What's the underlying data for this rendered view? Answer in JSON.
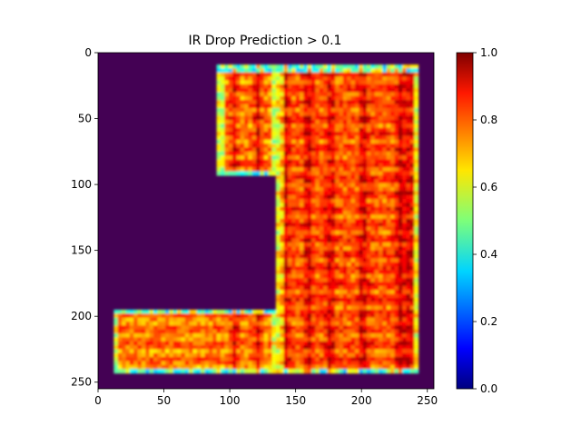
{
  "chart_data": {
    "type": "heatmap",
    "title": "IR Drop Prediction > 0.1",
    "xlabel": "",
    "ylabel": "",
    "xlim": [
      0,
      255
    ],
    "ylim": [
      255,
      0
    ],
    "x_ticks": [
      0,
      50,
      100,
      150,
      200,
      250
    ],
    "y_ticks": [
      0,
      50,
      100,
      150,
      200,
      250
    ],
    "grid": false,
    "colormap": "jet",
    "colorbar": {
      "range": [
        0.0,
        1.0
      ],
      "ticks": [
        0.0,
        0.2,
        0.4,
        0.6,
        0.8,
        1.0
      ],
      "tick_labels": [
        "0.0",
        "0.2",
        "0.4",
        "0.6",
        "0.8",
        "1.0"
      ]
    },
    "background_value": 0.0,
    "background_color": "#440154",
    "regions": [
      {
        "name": "upper-left-block",
        "x": [
          91,
          136
        ],
        "y": [
          10,
          94
        ],
        "value_range": [
          0.55,
          0.92
        ]
      },
      {
        "name": "right-column",
        "x": [
          136,
          244
        ],
        "y": [
          10,
          244
        ],
        "value_range": [
          0.6,
          0.95
        ]
      },
      {
        "name": "bottom-band",
        "x": [
          12,
          136
        ],
        "y": [
          194,
          244
        ],
        "value_range": [
          0.55,
          0.92
        ]
      }
    ],
    "hot_columns_x": [
      102,
      120,
      140,
      158,
      175,
      200,
      228,
      235
    ],
    "edge_value_range": [
      0.3,
      0.5
    ]
  }
}
